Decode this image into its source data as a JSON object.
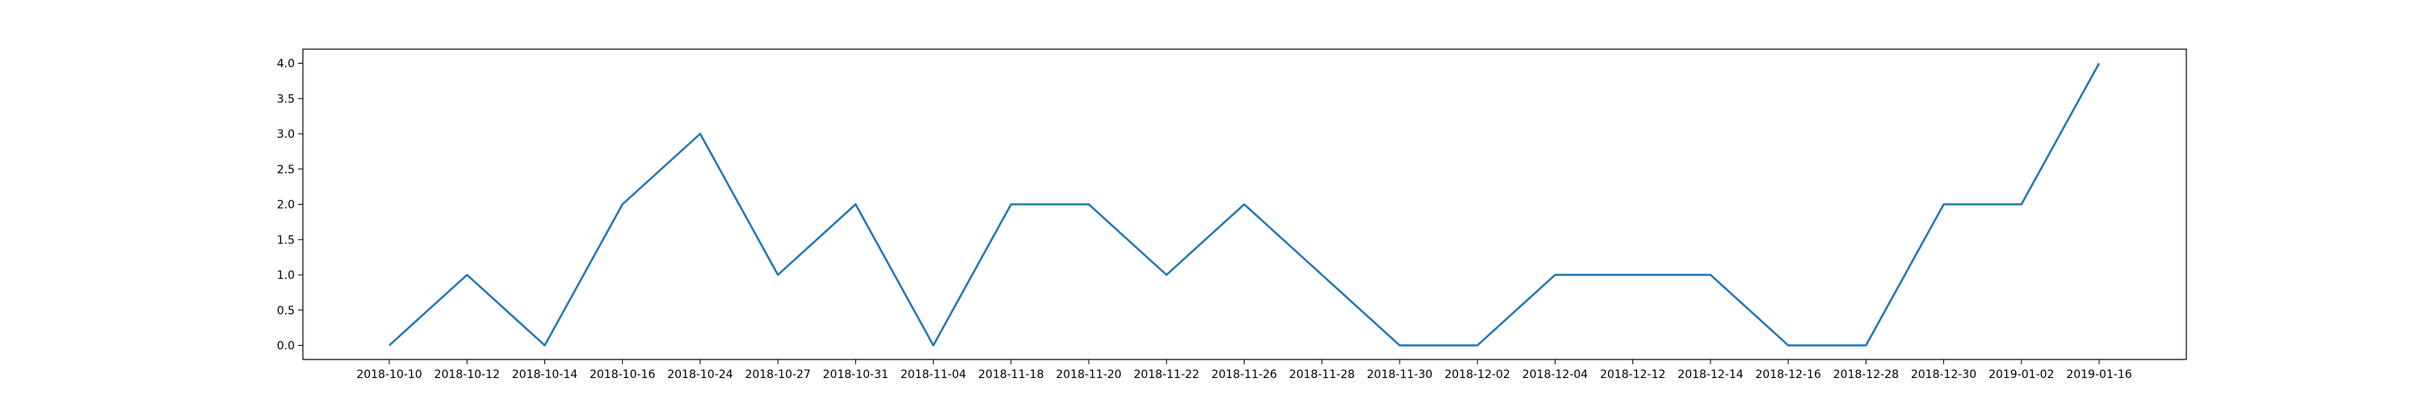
{
  "chart_data": {
    "type": "line",
    "title": "",
    "xlabel": "",
    "ylabel": "",
    "categories": [
      "2018-10-10",
      "2018-10-12",
      "2018-10-14",
      "2018-10-16",
      "2018-10-24",
      "2018-10-27",
      "2018-10-31",
      "2018-11-04",
      "2018-11-18",
      "2018-11-20",
      "2018-11-22",
      "2018-11-26",
      "2018-11-28",
      "2018-11-30",
      "2018-12-02",
      "2018-12-04",
      "2018-12-12",
      "2018-12-14",
      "2018-12-16",
      "2018-12-28",
      "2018-12-30",
      "2019-01-02",
      "2019-01-16"
    ],
    "series": [
      {
        "values": [
          0,
          1,
          0,
          2,
          3,
          1,
          2,
          0,
          2,
          2,
          1,
          2,
          1,
          0,
          0,
          1,
          1,
          1,
          0,
          0,
          2,
          2,
          4
        ]
      }
    ],
    "yticks": [
      "0.0",
      "0.5",
      "1.0",
      "1.5",
      "2.0",
      "2.5",
      "3.0",
      "3.5",
      "4.0"
    ],
    "ylim": [
      -0.2,
      4.2
    ],
    "grid": false,
    "colors": {
      "line": "#1f77b4",
      "axes": "#000000"
    }
  }
}
